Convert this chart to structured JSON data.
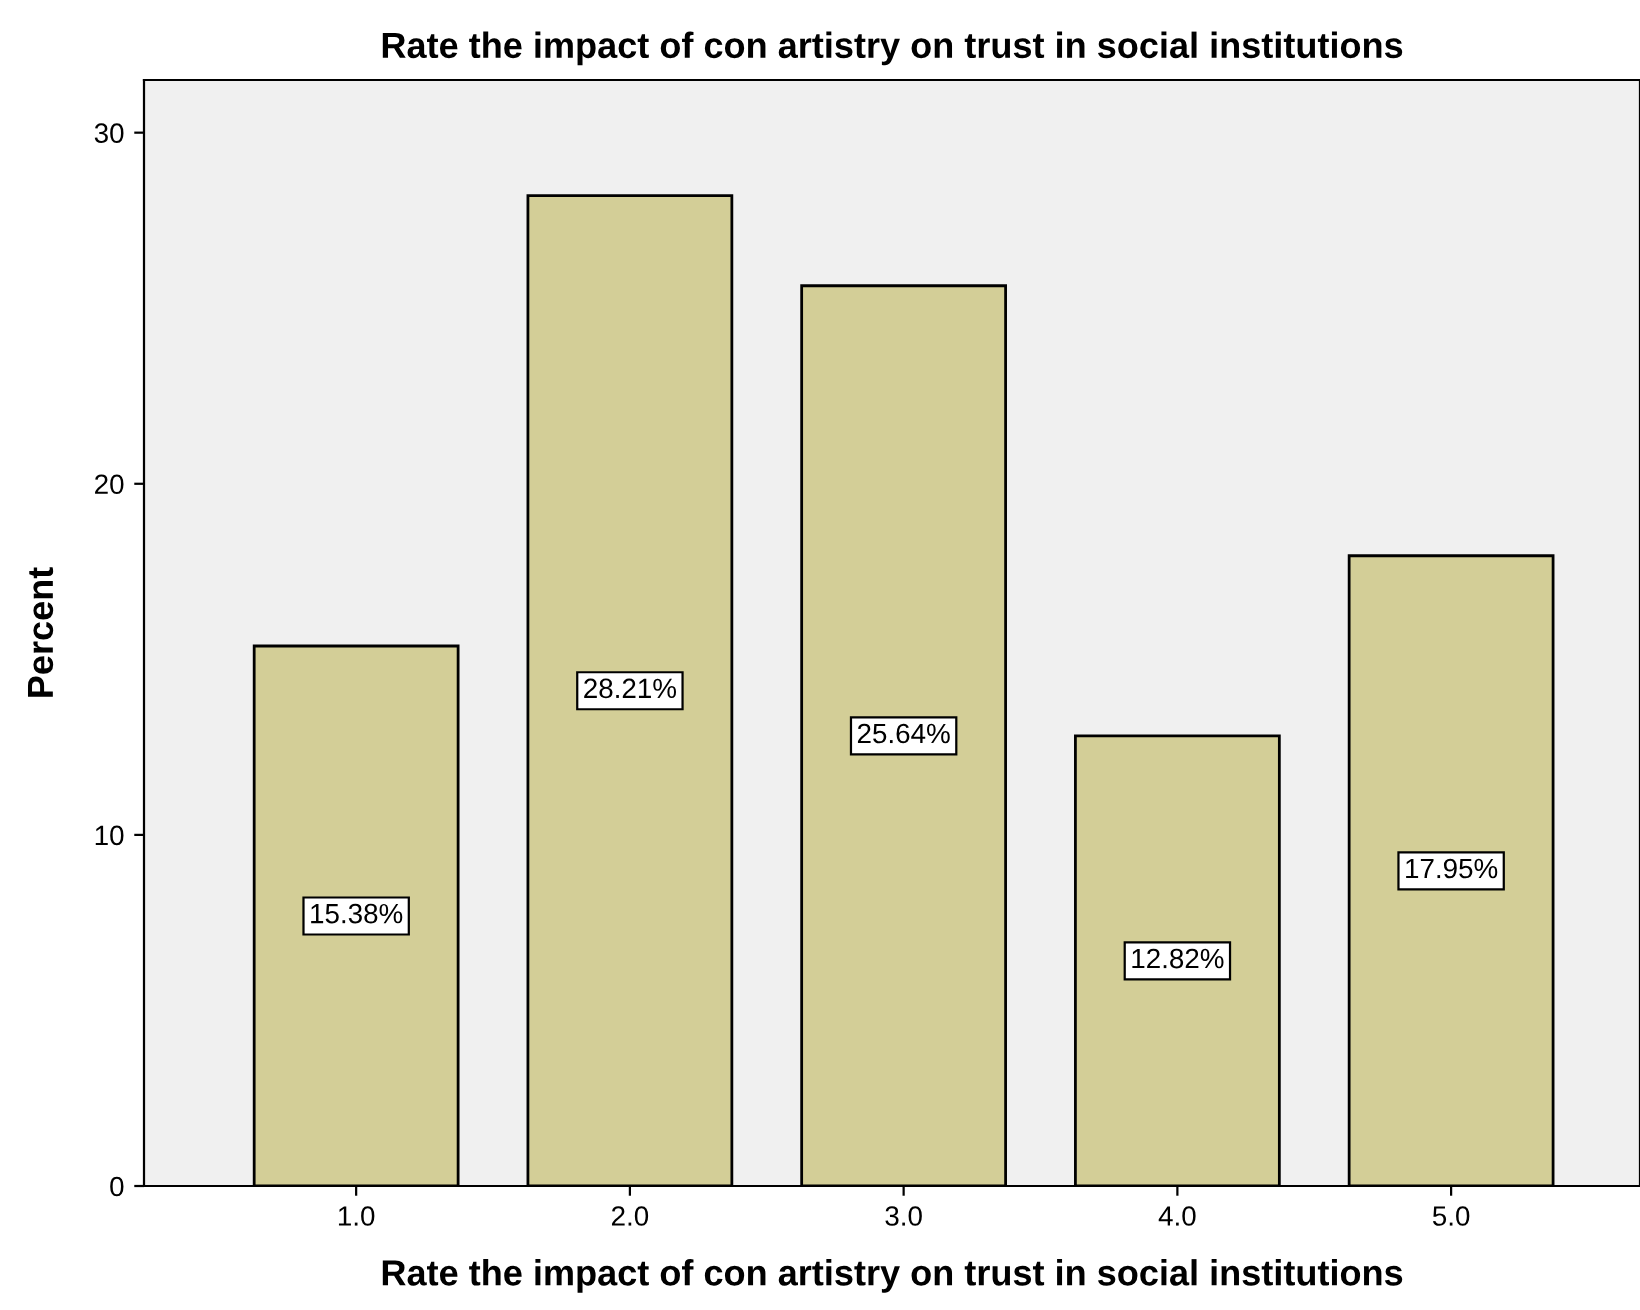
{
  "chart_data": {
    "type": "bar",
    "title": "Rate the impact of con artistry on trust in social institutions",
    "xlabel": "Rate the impact of con artistry on trust in social institutions",
    "ylabel": "Percent",
    "categories": [
      "1.0",
      "2.0",
      "3.0",
      "4.0",
      "5.0"
    ],
    "values": [
      15.38,
      28.21,
      25.64,
      12.82,
      17.95
    ],
    "value_labels": [
      "15.38%",
      "28.21%",
      "25.64%",
      "12.82%",
      "17.95%"
    ],
    "color": "#d3ce97",
    "ylim": [
      0,
      31.5
    ],
    "yticks": [
      0,
      10,
      20,
      30
    ],
    "grid": false
  }
}
